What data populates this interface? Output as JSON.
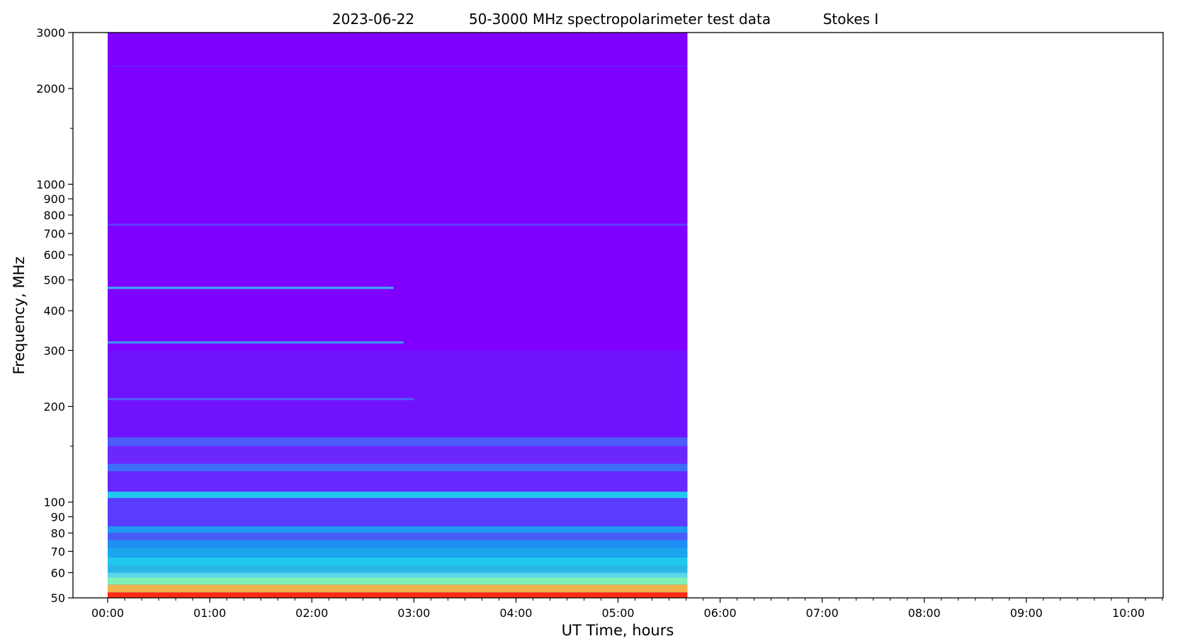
{
  "chart_data": {
    "type": "heatmap",
    "title_parts": [
      "2023-06-22",
      "50-3000 MHz spectropolarimeter test data",
      "Stokes I"
    ],
    "xlabel": "UT Time, hours",
    "ylabel": "Frequency, MHz",
    "x_scale": "linear",
    "y_scale": "log",
    "xlim_hours": [
      -0.34,
      10.34
    ],
    "ylim_mhz": [
      50,
      3000
    ],
    "x_ticks": [
      {
        "hours": 0,
        "label": "00:00"
      },
      {
        "hours": 1,
        "label": "01:00"
      },
      {
        "hours": 2,
        "label": "02:00"
      },
      {
        "hours": 3,
        "label": "03:00"
      },
      {
        "hours": 4,
        "label": "04:00"
      },
      {
        "hours": 5,
        "label": "05:00"
      },
      {
        "hours": 6,
        "label": "06:00"
      },
      {
        "hours": 7,
        "label": "07:00"
      },
      {
        "hours": 8,
        "label": "08:00"
      },
      {
        "hours": 9,
        "label": "09:00"
      },
      {
        "hours": 10,
        "label": "10:00"
      }
    ],
    "y_ticks": [
      {
        "mhz": 50,
        "label": "50"
      },
      {
        "mhz": 60,
        "label": "60"
      },
      {
        "mhz": 70,
        "label": "70"
      },
      {
        "mhz": 80,
        "label": "80"
      },
      {
        "mhz": 90,
        "label": "90"
      },
      {
        "mhz": 100,
        "label": "100"
      },
      {
        "mhz": 200,
        "label": "200"
      },
      {
        "mhz": 300,
        "label": "300"
      },
      {
        "mhz": 400,
        "label": "400"
      },
      {
        "mhz": 500,
        "label": "500"
      },
      {
        "mhz": 600,
        "label": "600"
      },
      {
        "mhz": 700,
        "label": "700"
      },
      {
        "mhz": 800,
        "label": "800"
      },
      {
        "mhz": 900,
        "label": "900"
      },
      {
        "mhz": 1000,
        "label": "1000"
      },
      {
        "mhz": 2000,
        "label": "2000"
      },
      {
        "mhz": 3000,
        "label": "3000"
      }
    ],
    "y_minor_ticks_mhz": [
      150,
      1500
    ],
    "data_extent": {
      "t_start_hours": 0.0,
      "t_end_hours": 5.68,
      "f_min_mhz": 50,
      "f_max_mhz": 3000
    },
    "colormap": "rainbow",
    "background_color": "#7f00ff",
    "bands": [
      {
        "f_low_mhz": 50,
        "f_high_mhz": 52,
        "color": "#ff2a10"
      },
      {
        "f_low_mhz": 52,
        "f_high_mhz": 55,
        "color": "#f2b24a"
      },
      {
        "f_low_mhz": 55,
        "f_high_mhz": 58,
        "color": "#7ef0b8"
      },
      {
        "f_low_mhz": 58,
        "f_high_mhz": 60,
        "color": "#5ad8e8"
      },
      {
        "f_low_mhz": 60,
        "f_high_mhz": 63,
        "color": "#2ab8e8"
      },
      {
        "f_low_mhz": 63,
        "f_high_mhz": 67,
        "color": "#20c8ec"
      },
      {
        "f_low_mhz": 67,
        "f_high_mhz": 72,
        "color": "#1aa6ee"
      },
      {
        "f_low_mhz": 72,
        "f_high_mhz": 76,
        "color": "#1e90f2"
      },
      {
        "f_low_mhz": 76,
        "f_high_mhz": 80,
        "color": "#4a5cf8"
      },
      {
        "f_low_mhz": 80,
        "f_high_mhz": 84,
        "color": "#1e98f0"
      },
      {
        "f_low_mhz": 84,
        "f_high_mhz": 103,
        "color": "#5a3cfc"
      },
      {
        "f_low_mhz": 103,
        "f_high_mhz": 108,
        "color": "#22c6ee"
      },
      {
        "f_low_mhz": 108,
        "f_high_mhz": 125,
        "color": "#6628fd"
      },
      {
        "f_low_mhz": 125,
        "f_high_mhz": 132,
        "color": "#3c70f6"
      },
      {
        "f_low_mhz": 132,
        "f_high_mhz": 150,
        "color": "#6a28fd"
      },
      {
        "f_low_mhz": 150,
        "f_high_mhz": 160,
        "color": "#4c5cf8"
      },
      {
        "f_low_mhz": 160,
        "f_high_mhz": 300,
        "color": "#7012fe"
      },
      {
        "f_low_mhz": 300,
        "f_high_mhz": 3000,
        "color": "#7f00ff"
      }
    ],
    "narrow_lines": [
      {
        "f_mhz": 472,
        "t_start_hours": 0.0,
        "t_end_hours": 2.8,
        "color": "#2ad0f0"
      },
      {
        "f_mhz": 318,
        "t_start_hours": 0.0,
        "t_end_hours": 2.9,
        "color": "#2ab8f0"
      },
      {
        "f_mhz": 211,
        "t_start_hours": 0.0,
        "t_end_hours": 3.0,
        "color": "#4a70f6"
      },
      {
        "f_mhz": 746,
        "t_start_hours": 0.0,
        "t_end_hours": 5.68,
        "color": "#5a48fa"
      },
      {
        "f_mhz": 2350,
        "t_start_hours": 0.0,
        "t_end_hours": 5.68,
        "color": "#7018fe"
      }
    ]
  }
}
